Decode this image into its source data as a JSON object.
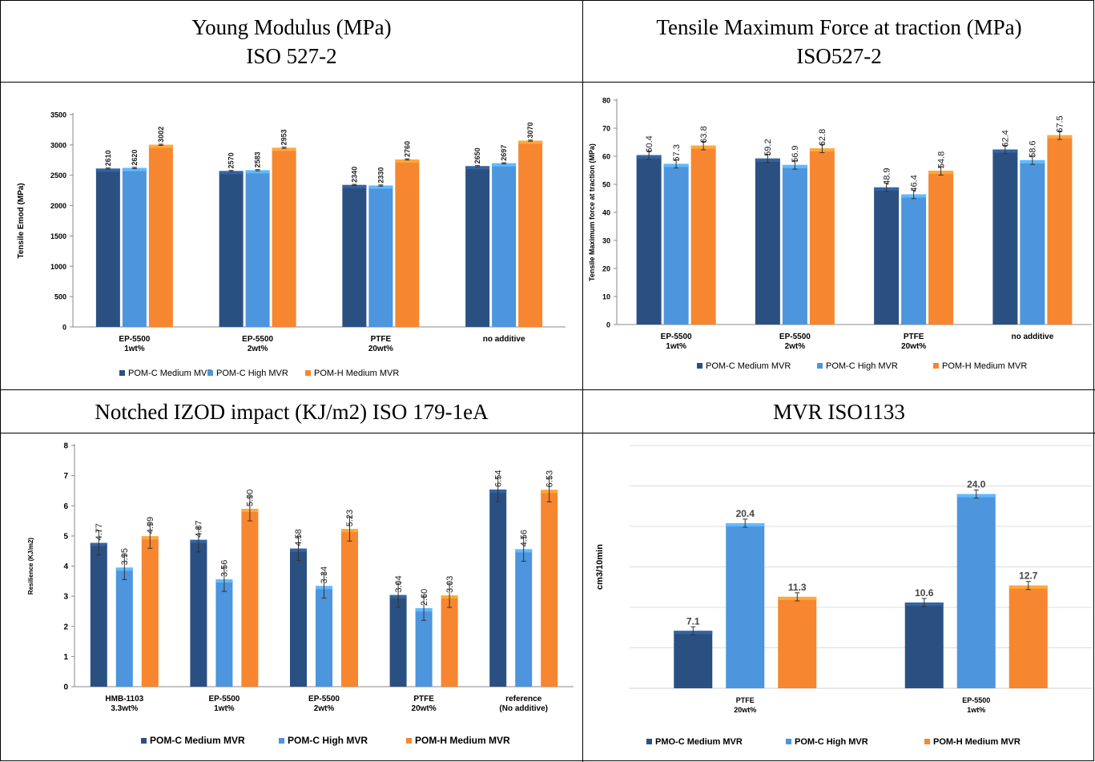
{
  "headers": [
    {
      "line1": "Young Modulus (MPa)",
      "line2": "ISO 527-2"
    },
    {
      "line1": "Tensile Maximum Force at traction (MPa)",
      "line2": "ISO527-2"
    },
    {
      "line1": "Notched IZOD impact (KJ/m2) ISO 179-1eA",
      "line2": ""
    },
    {
      "line1": "MVR ISO1133",
      "line2": ""
    }
  ],
  "colors": {
    "dark_blue": "#2a5082",
    "light_blue": "#4d95dc",
    "orange": "#f6862f"
  },
  "chart_data": [
    {
      "type": "bar",
      "ylabel": "Tensile Emod (MPa)",
      "ylim": [
        0,
        3500
      ],
      "yticks": [
        0,
        500,
        1000,
        1500,
        2000,
        2500,
        3000,
        3500
      ],
      "categories": [
        [
          "EP-5500",
          "1wt%"
        ],
        [
          "EP-5500",
          "2wt%"
        ],
        [
          "PTFE",
          "20wt%"
        ],
        [
          "no additive"
        ]
      ],
      "series": [
        {
          "name": "POM-C Medium MVR",
          "color": "#2a5082",
          "values": [
            2610,
            2570,
            2340,
            2650
          ],
          "labels": [
            "2610",
            "2570",
            "2340",
            "2650"
          ]
        },
        {
          "name": "POM-C High MVR",
          "color": "#4d95dc",
          "values": [
            2620,
            2583,
            2330,
            2697
          ],
          "labels": [
            "2620",
            "2583",
            "2330",
            "2697"
          ]
        },
        {
          "name": "POM-H Medium MVR",
          "color": "#f6862f",
          "values": [
            3002,
            2953,
            2760,
            3070
          ],
          "labels": [
            "3002",
            "2953",
            "2760",
            "3070"
          ]
        }
      ],
      "legend": "bottom",
      "grid": false
    },
    {
      "type": "bar",
      "ylabel": "Tensile Maximum force at traction (MPa)",
      "ylim": [
        0,
        80
      ],
      "yticks": [
        0,
        10,
        20,
        30,
        40,
        50,
        60,
        70,
        80
      ],
      "categories": [
        [
          "EP-5500",
          "1wt%"
        ],
        [
          "EP-5500",
          "2wt%"
        ],
        [
          "PTFE",
          "20wt%"
        ],
        [
          "no additive"
        ]
      ],
      "series": [
        {
          "name": "POM-C Medium MVR",
          "color": "#2a5082",
          "values": [
            60.4,
            59.2,
            48.9,
            62.4
          ],
          "labels": [
            "60.4",
            "59.2",
            "48.9",
            "62.4"
          ]
        },
        {
          "name": "POM-C High MVR",
          "color": "#4d95dc",
          "values": [
            57.3,
            56.9,
            46.4,
            58.6
          ],
          "labels": [
            "57.3",
            "56.9",
            "46.4",
            "58.6"
          ]
        },
        {
          "name": "POM-H Medium MVR",
          "color": "#f6862f",
          "values": [
            63.8,
            62.8,
            54.8,
            67.5
          ],
          "labels": [
            "63.8",
            "62.8",
            "54.8",
            "67.5"
          ]
        }
      ],
      "legend": "bottom",
      "grid": false
    },
    {
      "type": "bar",
      "ylabel": "Resilience (KJ/m2)",
      "ylim": [
        0,
        8
      ],
      "yticks": [
        0,
        1,
        2,
        3,
        4,
        5,
        6,
        7,
        8
      ],
      "categories": [
        [
          "HMB-1103",
          "3.3wt%"
        ],
        [
          "EP-5500",
          "1wt%"
        ],
        [
          "EP-5500",
          "2wt%"
        ],
        [
          "PTFE",
          "20wt%"
        ],
        [
          "reference",
          "(No additive)"
        ]
      ],
      "series": [
        {
          "name": "POM-C Medium MVR",
          "color": "#2a5082",
          "values": [
            4.77,
            4.87,
            4.58,
            3.04,
            6.54
          ],
          "labels": [
            "4.77",
            "4.87",
            "4.58",
            "3.04",
            "6.54"
          ]
        },
        {
          "name": "POM-C High MVR",
          "color": "#4d95dc",
          "values": [
            3.95,
            3.56,
            3.34,
            2.6,
            4.56
          ],
          "labels": [
            "3.95",
            "3.56",
            "3.34",
            "2.60",
            "4.56"
          ]
        },
        {
          "name": "POM-H Medium MVR",
          "color": "#f6862f",
          "values": [
            4.99,
            5.9,
            5.23,
            3.03,
            6.53
          ],
          "labels": [
            "4.99",
            "5.90",
            "5.23",
            "3.03",
            "6.53"
          ]
        }
      ],
      "legend": "bottom",
      "grid": false
    },
    {
      "type": "bar",
      "ylabel": "cm3/10min",
      "ylim": [
        0,
        30
      ],
      "yticks": [],
      "categories": [
        [
          "PTFE",
          "20wt%"
        ],
        [
          "EP-5500",
          "1wt%"
        ]
      ],
      "series": [
        {
          "name": "PMO-C Medium MVR",
          "color": "#2a5082",
          "values": [
            7.1,
            10.6
          ],
          "labels": [
            "7.1",
            "10.6"
          ]
        },
        {
          "name": "POM-C High MVR",
          "color": "#4d95dc",
          "values": [
            20.4,
            24.0
          ],
          "labels": [
            "20.4",
            "24.0"
          ]
        },
        {
          "name": "POM-H Medium MVR",
          "color": "#f6862f",
          "values": [
            11.3,
            12.7
          ],
          "labels": [
            "11.3",
            "12.7"
          ]
        }
      ],
      "legend": "bottom",
      "grid": true
    }
  ]
}
